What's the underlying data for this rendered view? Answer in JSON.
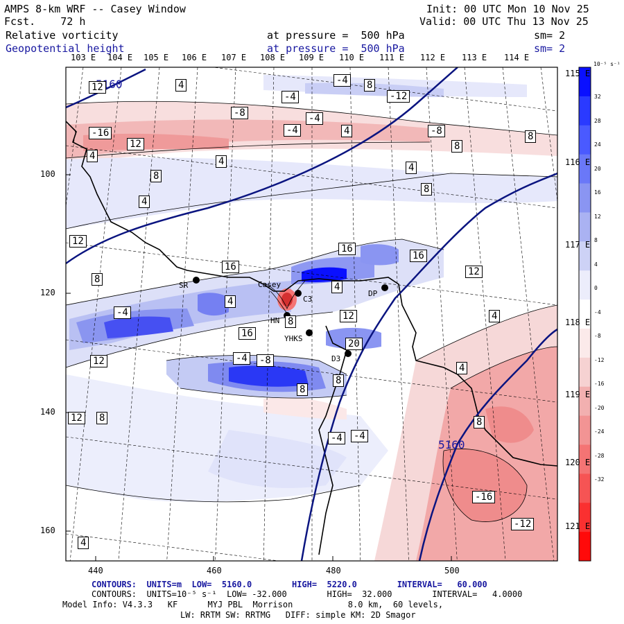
{
  "header": {
    "title": "AMPS 8-km WRF -- Casey Window",
    "forecast": "Fcst.    72 h",
    "init": "Init: 00 UTC Mon 10 Nov 25",
    "valid": "Valid: 00 UTC Thu 13 Nov 25",
    "field1": "Relative vorticity",
    "field1_level": "at pressure =  500 hPa",
    "field1_sm": "sm= 2",
    "field2": "Geopotential height",
    "field2_level": "at pressure =  500 hPa",
    "field2_sm": "sm= 2"
  },
  "longitude_labels": [
    "103 E",
    "104 E",
    "105 E",
    "106 E",
    "107 E",
    "108 E",
    "109 E",
    "110 E",
    "111 E",
    "112 E",
    "113 E",
    "114 E"
  ],
  "latitude_labels": [
    "115 E",
    "116 E",
    "117 E",
    "118 E",
    "119 E",
    "120 E",
    "121 E"
  ],
  "y_axis_ticks": [
    "100",
    "120",
    "140",
    "160"
  ],
  "x_axis_ticks": [
    "440",
    "460",
    "480",
    "500"
  ],
  "colorbar": {
    "unit": "10⁻⁵ s⁻¹",
    "labels": [
      "32",
      "28",
      "24",
      "20",
      "16",
      "12",
      "8",
      "4",
      "0",
      "-4",
      "-8",
      "-12",
      "-16",
      "-20",
      "-24",
      "-28",
      "-32"
    ],
    "colors": [
      "#0a10ff",
      "#2a3aff",
      "#4a5aff",
      "#6a78f8",
      "#8a95f2",
      "#aab2f2",
      "#cdd2f6",
      "#ecedfb",
      "#ffffff",
      "#fbeaea",
      "#f6d2d2",
      "#f2b0b0",
      "#f29494",
      "#f47474",
      "#f65454",
      "#fa3030",
      "#ff0a0a"
    ]
  },
  "stations": [
    "SR",
    "Casey",
    "C3",
    "HN",
    "DP",
    "YHKS",
    "D3"
  ],
  "height_labels": [
    "5160",
    "5160"
  ],
  "contour_labels": [
    "4",
    "-4",
    "8",
    "12",
    "-4",
    "-12",
    "-8",
    "-4",
    "-4",
    "4",
    "-8",
    "-16",
    "12",
    "4",
    "8",
    "8",
    "4",
    "4",
    "8",
    "8",
    "4",
    "12",
    "8",
    "16",
    "16",
    "16",
    "12",
    "4",
    "-4",
    "4",
    "4",
    "8",
    "12",
    "16",
    "20",
    "12",
    "-4",
    "-8",
    "8",
    "8",
    "-4",
    "4",
    "12",
    "8",
    "8",
    "-16",
    "-12",
    "-4",
    "4"
  ],
  "footer": {
    "line1_contours": "CONTOURS:  UNITS=m  LOW=  5160.0        HIGH=  5220.0        INTERVAL=   60.000",
    "line2_contours": "CONTOURS:  UNITS=10⁻⁵ s⁻¹  LOW= -32.000        HIGH=  32.000        INTERVAL=   4.0000",
    "line3": "Model Info: V4.3.3   KF      MYJ PBL  Morrison           8.0 km,  60 levels,",
    "line4": "LW: RRTM SW: RRTMG   DIFF: simple KM: 2D Smagor"
  }
}
